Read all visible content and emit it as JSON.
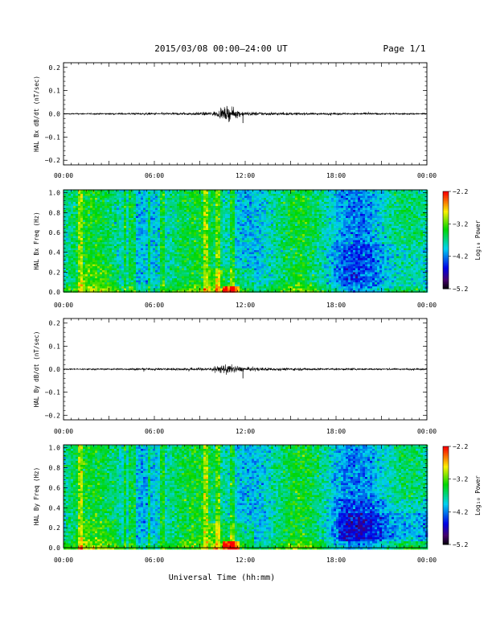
{
  "header": {
    "title": "2015/03/08  00:00–24:00 UT",
    "page": "Page 1/1"
  },
  "x_axis_label": "Universal Time (hh:mm)",
  "chart_data": [
    {
      "type": "line",
      "ylabel": "HAL Bx dB/dt (nT/sec)",
      "xlim": [
        "00:00",
        "24:00"
      ],
      "x_ticks": [
        "00:00",
        "06:00",
        "12:00",
        "18:00",
        "00:00"
      ],
      "ylim": [
        -0.22,
        0.22
      ],
      "y_ticks": [
        "0.2",
        "0.1",
        "0.0",
        "−0.1",
        "−0.2"
      ],
      "y_tick_values": [
        0.2,
        0.1,
        0.0,
        -0.1,
        -0.2
      ],
      "noise": [
        [
          0,
          0.002
        ],
        [
          2,
          0.003
        ],
        [
          5,
          0.004
        ],
        [
          8,
          0.005
        ],
        [
          9.5,
          0.007
        ],
        [
          10.2,
          0.012
        ],
        [
          10.8,
          0.03
        ],
        [
          11.2,
          0.02
        ],
        [
          12,
          0.008
        ],
        [
          15,
          0.005
        ],
        [
          18,
          0.004
        ],
        [
          24,
          0.003
        ]
      ]
    },
    {
      "type": "heatmap",
      "ylabel": "HAL Bx Freq (Hz)",
      "ylim": [
        0,
        1.03
      ],
      "y_ticks": [
        "1.0",
        "0.8",
        "0.6",
        "0.4",
        "0.2",
        "0.0"
      ],
      "y_tick_values": [
        1.0,
        0.8,
        0.6,
        0.4,
        0.2,
        0.0
      ],
      "x_ticks": [
        "00:00",
        "06:00",
        "12:00",
        "18:00",
        "00:00"
      ],
      "colorbar": {
        "label": "Log₁₀ Power",
        "ticks": [
          "−2.2",
          "−3.2",
          "−4.2",
          "−5.2"
        ],
        "range": [
          -5.2,
          -2.2
        ]
      }
    },
    {
      "type": "line",
      "ylabel": "HAL By dB/dt (nT/sec)",
      "xlim": [
        "00:00",
        "24:00"
      ],
      "x_ticks": [
        "00:00",
        "06:00",
        "12:00",
        "18:00",
        "00:00"
      ],
      "ylim": [
        -0.22,
        0.22
      ],
      "y_ticks": [
        "0.2",
        "0.1",
        "0.0",
        "−0.1",
        "−0.2"
      ],
      "y_tick_values": [
        0.2,
        0.1,
        0.0,
        -0.1,
        -0.2
      ],
      "noise": [
        [
          0,
          0.002
        ],
        [
          2,
          0.003
        ],
        [
          5,
          0.004
        ],
        [
          8,
          0.005
        ],
        [
          9.5,
          0.007
        ],
        [
          10.2,
          0.012
        ],
        [
          10.8,
          0.022
        ],
        [
          11.2,
          0.015
        ],
        [
          12,
          0.008
        ],
        [
          15,
          0.005
        ],
        [
          18,
          0.004
        ],
        [
          24,
          0.003
        ]
      ]
    },
    {
      "type": "heatmap",
      "ylabel": "HAL By Freq (Hz)",
      "ylim": [
        0,
        1.03
      ],
      "y_ticks": [
        "1.0",
        "0.8",
        "0.6",
        "0.4",
        "0.2",
        "0.0"
      ],
      "y_tick_values": [
        1.0,
        0.8,
        0.6,
        0.4,
        0.2,
        0.0
      ],
      "x_ticks": [
        "00:00",
        "06:00",
        "12:00",
        "18:00",
        "00:00"
      ],
      "colorbar": {
        "label": "Log₁₀ Power",
        "ticks": [
          "−2.2",
          "−3.2",
          "−4.2",
          "−5.2"
        ],
        "range": [
          -5.2,
          -2.2
        ]
      }
    }
  ]
}
